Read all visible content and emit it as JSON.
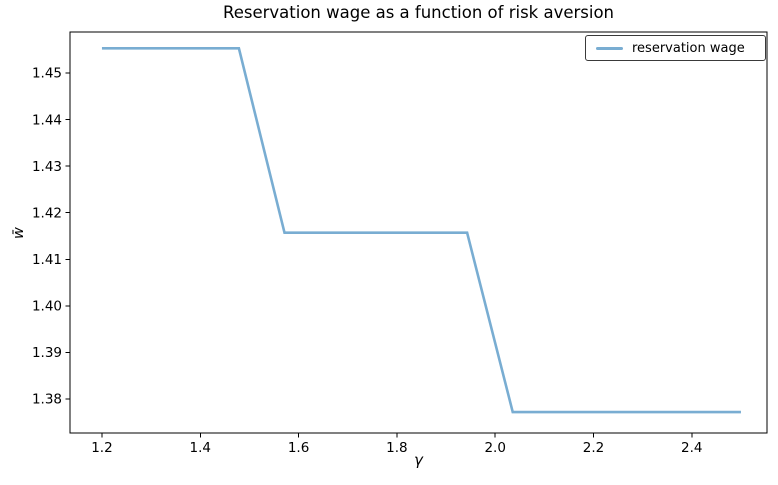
{
  "chart_data": {
    "type": "line",
    "title": "Reservation wage as a function of risk aversion",
    "xlabel": "γ",
    "ylabel": "w̄",
    "legend": [
      "reservation wage"
    ],
    "legend_position": "upper right",
    "grid": false,
    "xlim": [
      1.135,
      2.553
    ],
    "ylim": [
      1.3727,
      1.4588
    ],
    "xticks": [
      1.2,
      1.4,
      1.6,
      1.8,
      2.0,
      2.2,
      2.4
    ],
    "yticks": [
      1.38,
      1.39,
      1.4,
      1.41,
      1.42,
      1.43,
      1.44,
      1.45
    ],
    "colors": {
      "line": "#79add2",
      "axis": "#000000",
      "background": "#ffffff",
      "legend_border": "#3a3a3a"
    },
    "series": [
      {
        "name": "reservation wage",
        "x": [
          1.2,
          1.2929,
          1.3857,
          1.4786,
          1.5714,
          1.6643,
          1.7571,
          1.85,
          1.9429,
          2.0357,
          2.1286,
          2.2214,
          2.3143,
          2.4071,
          2.5
        ],
        "y": [
          1.4553,
          1.4553,
          1.4553,
          1.4553,
          1.4157,
          1.4157,
          1.4157,
          1.4157,
          1.4157,
          1.3772,
          1.3772,
          1.3772,
          1.3772,
          1.3772,
          1.3772
        ]
      }
    ]
  }
}
